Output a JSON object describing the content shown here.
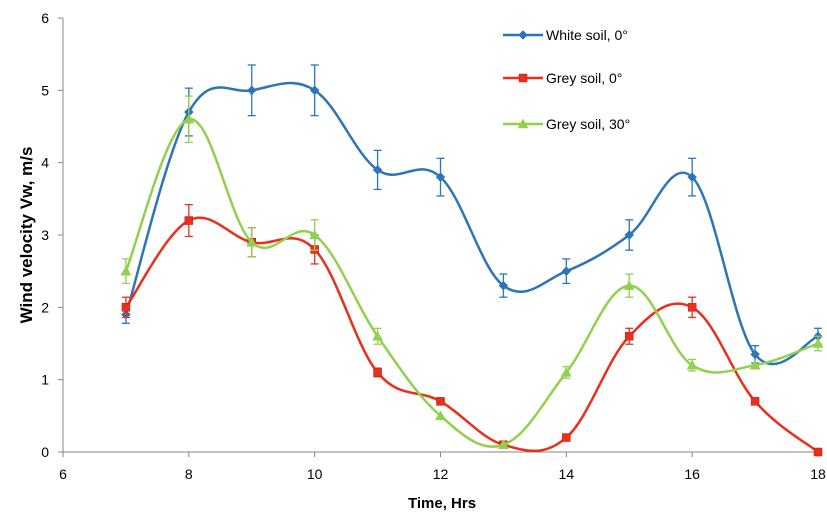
{
  "chart_data": {
    "type": "line",
    "title": "",
    "xlabel": "Time, Hrs",
    "ylabel": "Wind velocity Vw, m/s",
    "xlim": [
      6,
      18
    ],
    "ylim": [
      0,
      6
    ],
    "xticks": [
      6,
      8,
      10,
      12,
      14,
      16,
      18
    ],
    "yticks": [
      0,
      1,
      2,
      3,
      4,
      5,
      6
    ],
    "grid": false,
    "legend_position": "top-right",
    "series": [
      {
        "name": "White soil, 0°",
        "color": "#2E75B6",
        "marker": "diamond",
        "x": [
          7,
          8,
          9,
          10,
          11,
          12,
          13,
          14,
          15,
          16,
          17,
          18
        ],
        "y": [
          1.9,
          4.7,
          5.0,
          5.0,
          3.9,
          3.8,
          2.3,
          2.5,
          3.0,
          3.8,
          1.35,
          1.6
        ],
        "error": [
          0.12,
          0.33,
          0.35,
          0.35,
          0.27,
          0.26,
          0.16,
          0.17,
          0.21,
          0.26,
          0.12,
          0.11
        ]
      },
      {
        "name": "Grey soil, 0°",
        "color": "#E8301C",
        "marker": "square",
        "x": [
          7,
          8,
          9,
          10,
          11,
          12,
          13,
          14,
          15,
          16,
          17,
          18
        ],
        "y": [
          2.0,
          3.2,
          2.9,
          2.8,
          1.1,
          0.7,
          0.1,
          0.2,
          1.6,
          2.0,
          0.7,
          0.0
        ],
        "error": [
          0.14,
          0.22,
          0.2,
          0.2,
          0.06,
          0.0,
          0.0,
          0.0,
          0.11,
          0.14,
          0.0,
          0.0
        ]
      },
      {
        "name": "Grey soil, 30°",
        "color": "#92D050",
        "marker": "triangle",
        "x": [
          7,
          8,
          9,
          10,
          11,
          12,
          13,
          14,
          15,
          16,
          17,
          18
        ],
        "y": [
          2.5,
          4.6,
          2.9,
          3.0,
          1.6,
          0.5,
          0.1,
          1.1,
          2.3,
          1.2,
          1.2,
          1.5
        ],
        "error": [
          0.17,
          0.32,
          0.2,
          0.21,
          0.11,
          0.0,
          0.0,
          0.08,
          0.16,
          0.08,
          0.0,
          0.1
        ]
      }
    ]
  }
}
